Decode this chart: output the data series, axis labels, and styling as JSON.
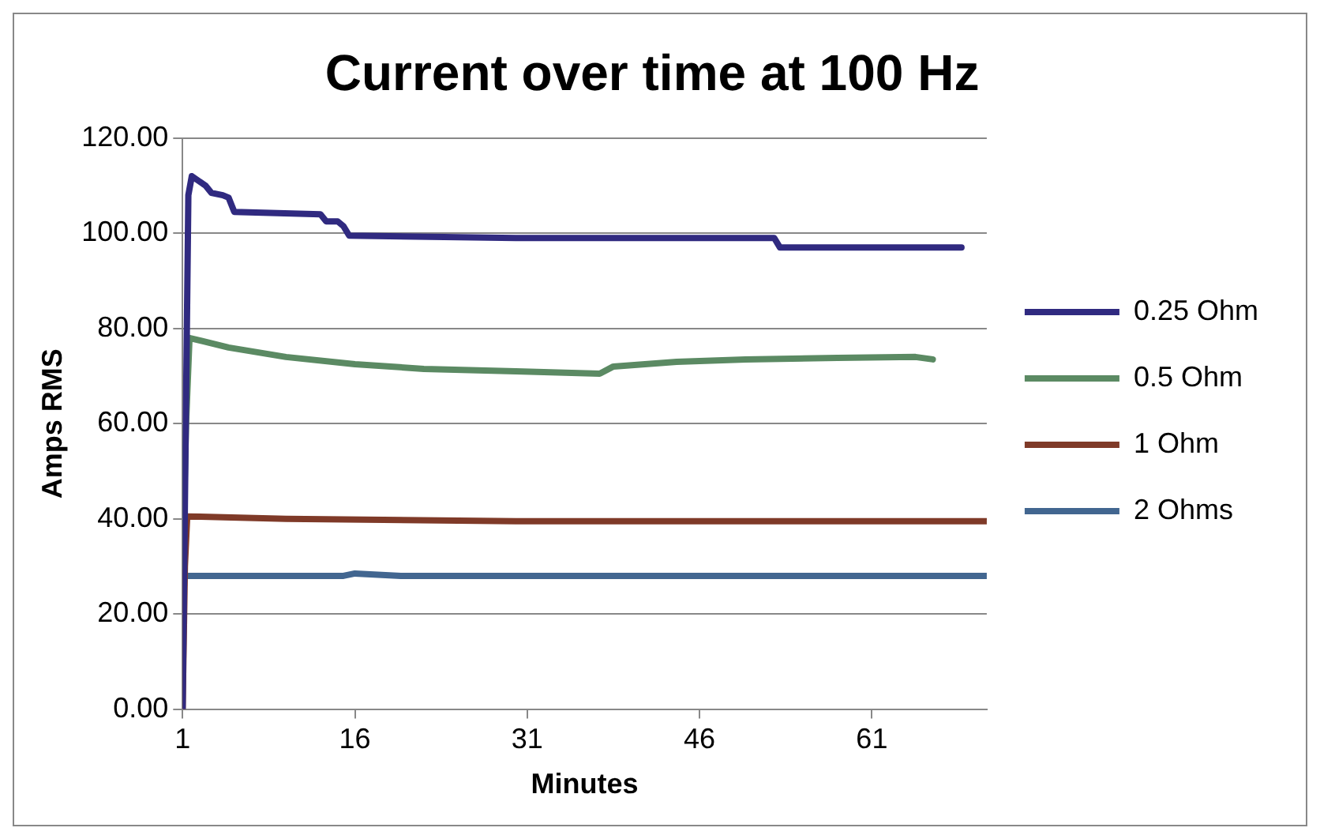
{
  "chart_data": {
    "type": "line",
    "title": "Current over time at 100 Hz",
    "xlabel": "Minutes",
    "ylabel": "Amps RMS",
    "xlim": [
      1,
      71
    ],
    "xticks": [
      1,
      16,
      31,
      46,
      61
    ],
    "ylim": [
      0,
      120
    ],
    "yticks": [
      {
        "value": 0,
        "label": "0.00"
      },
      {
        "value": 20,
        "label": "20.00"
      },
      {
        "value": 40,
        "label": "40.00"
      },
      {
        "value": 60,
        "label": "60.00"
      },
      {
        "value": 80,
        "label": "80.00"
      },
      {
        "value": 100,
        "label": "100.00"
      },
      {
        "value": 120,
        "label": "120.00"
      }
    ],
    "grid": "y",
    "legend": "right",
    "marker": "none",
    "line_style": "solid",
    "series": [
      {
        "name": "0.25 Ohm",
        "color": "#302a80",
        "x": [
          1,
          1.5,
          1.8,
          3,
          3.5,
          4.5,
          5,
          5.5,
          13,
          13.5,
          14.5,
          15,
          15.5,
          30,
          45,
          52.5,
          53,
          60,
          68.8
        ],
        "values": [
          0,
          108,
          112,
          110,
          108.5,
          108,
          107.5,
          104.5,
          104,
          102.5,
          102.5,
          101.5,
          99.5,
          99,
          99,
          99,
          97,
          97,
          97
        ]
      },
      {
        "name": "0.5 Ohm",
        "color": "#5b8a63",
        "x": [
          1,
          1.3,
          1.6,
          5,
          10,
          16,
          22,
          30,
          37.3,
          38.5,
          44,
          50,
          58,
          64.8,
          66.3
        ],
        "values": [
          30,
          60,
          78,
          76,
          74,
          72.5,
          71.5,
          71,
          70.5,
          72,
          73,
          73.5,
          73.8,
          74,
          73.5
        ]
      },
      {
        "name": "1 Ohm",
        "color": "#7f3a28",
        "x": [
          1,
          1.2,
          1.4,
          10,
          30,
          50,
          71
        ],
        "values": [
          0,
          30,
          40.5,
          40,
          39.5,
          39.5,
          39.5
        ]
      },
      {
        "name": "2 Ohms",
        "color": "#426690",
        "x": [
          1,
          10,
          15,
          16,
          20,
          40,
          71
        ],
        "values": [
          28,
          28,
          28,
          28.5,
          28,
          28,
          28
        ]
      }
    ]
  }
}
